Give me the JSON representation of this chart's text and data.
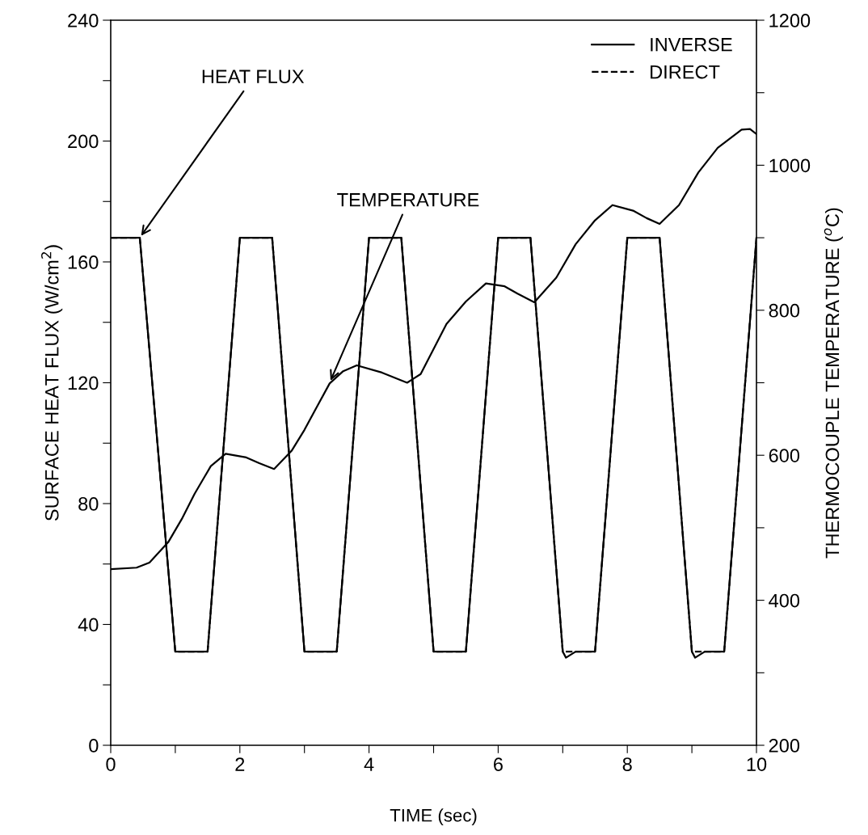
{
  "chart_data": {
    "type": "line",
    "xlabel": "TIME (sec)",
    "ylabel": "SURFACE HEAT FLUX (W/cm$^{2}$)",
    "y2label": "THERMOCOUPLE TEMPERATURE ($^{o}$C)",
    "series": [
      {
        "name": "INVERSE",
        "color": "#000000",
        "line_style": "solid",
        "x": [
          0,
          0.45,
          1.0,
          1.5,
          2.0,
          2.5,
          3.0,
          3.5,
          4.0,
          4.5,
          5.0,
          5.5,
          6.0,
          6.5,
          7.0,
          7.05,
          7.2,
          7.5,
          8.0,
          8.5,
          9.0,
          9.05,
          9.2,
          9.5,
          10.0
        ],
        "values": [
          168,
          168,
          31,
          31,
          168,
          168,
          31,
          31,
          168,
          168,
          31,
          31,
          168,
          168,
          31,
          29,
          31,
          31,
          168,
          168,
          31,
          29,
          31,
          31,
          168
        ]
      },
      {
        "name": "DIRECT",
        "color": "#000000",
        "line_style": "dashed",
        "x": [
          0,
          0.45,
          1.0,
          1.5,
          2.0,
          2.5,
          3.0,
          3.5,
          4.0,
          4.5,
          5.0,
          5.5,
          6.0,
          6.5,
          7.0,
          7.5,
          8.0,
          8.5,
          9.0,
          9.5,
          10.0
        ],
        "values": [
          168,
          168,
          31,
          31,
          168,
          168,
          31,
          31,
          168,
          168,
          31,
          31,
          168,
          168,
          31,
          31,
          168,
          168,
          31,
          31,
          168
        ]
      },
      {
        "color": "#000000",
        "line_style": "solid",
        "axis": "y2",
        "x": [
          0,
          0.4,
          0.6,
          0.89,
          1.1,
          1.3,
          1.55,
          1.78,
          2.1,
          2.3,
          2.53,
          2.8,
          3.0,
          3.2,
          3.39,
          3.6,
          3.81,
          4.2,
          4.59,
          4.8,
          5.2,
          5.5,
          5.81,
          6.1,
          6.3,
          6.56,
          6.9,
          7.2,
          7.5,
          7.77,
          8.1,
          8.3,
          8.5,
          8.8,
          9.1,
          9.4,
          9.77,
          9.9,
          10.0
        ],
        "values": [
          443,
          445,
          452,
          480,
          512,
          547,
          585,
          602,
          597,
          589,
          581,
          606,
          635,
          668,
          699,
          716,
          724,
          714,
          700,
          712,
          781,
          812,
          837,
          833,
          823,
          811,
          845,
          891,
          924,
          945,
          937,
          927,
          919,
          945,
          990,
          1024,
          1049,
          1050,
          1043
        ]
      }
    ],
    "xlim": [
      0,
      10
    ],
    "xticks": [
      0,
      {
        "value": 1,
        "label": null
      },
      2,
      {
        "value": 3,
        "label": null
      },
      4,
      {
        "value": 5,
        "label": null
      },
      6,
      {
        "value": 7,
        "label": null
      },
      8,
      {
        "value": 9,
        "label": null
      },
      10
    ],
    "ylim": [
      0,
      240
    ],
    "yticks": [
      0,
      {
        "value": 20,
        "label": null
      },
      40,
      {
        "value": 60,
        "label": null
      },
      80,
      {
        "value": 100,
        "label": null
      },
      120,
      {
        "value": 140,
        "label": null
      },
      160,
      {
        "value": 180,
        "label": null
      },
      200,
      {
        "value": 220,
        "label": null
      },
      240
    ],
    "y2lim": [
      200,
      1200
    ],
    "y2ticks": [
      200,
      {
        "value": 300,
        "label": null
      },
      400,
      {
        "value": 500,
        "label": null
      },
      600,
      {
        "value": 700,
        "label": null
      },
      800,
      {
        "value": 900,
        "label": null
      },
      1000,
      {
        "value": 1100,
        "label": null
      },
      1200
    ],
    "annotations": [
      {
        "text": "HEAT FLUX",
        "x": 0.45,
        "y": 168
      },
      {
        "text": "TEMPERATURE",
        "x": 3.39,
        "y": 120
      }
    ],
    "legend": "top right",
    "grid": false,
    "marker": "none"
  }
}
